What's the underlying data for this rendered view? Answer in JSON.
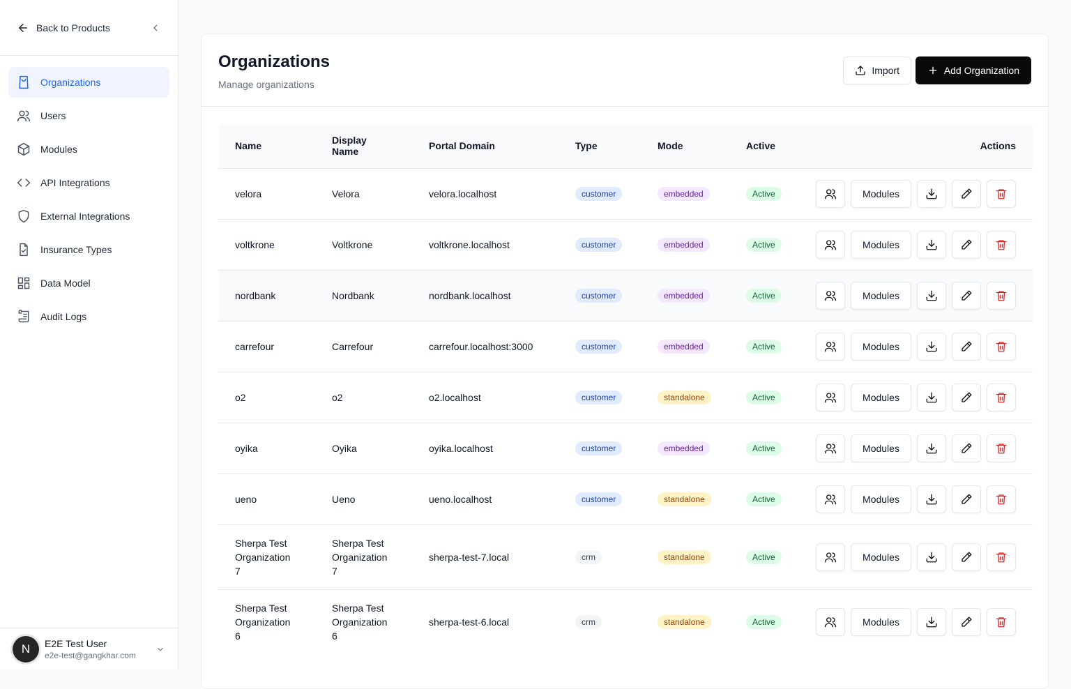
{
  "sidebar": {
    "back": "Back to Products",
    "nav": [
      "Organizations",
      "Users",
      "Modules",
      "API Integrations",
      "External Integrations",
      "Insurance Types",
      "Data Model",
      "Audit Logs"
    ],
    "user": {
      "avatar": "N",
      "name": "E2E Test User",
      "email": "e2e-test@gangkhar.com"
    }
  },
  "header": {
    "title": "Organizations",
    "subtitle": "Manage organizations",
    "import": "Import",
    "add": "Add Organization"
  },
  "table": {
    "columns": [
      "Name",
      "Display Name",
      "Portal Domain",
      "Type",
      "Mode",
      "Active",
      "Actions"
    ],
    "modules_button": "Modules",
    "rows": [
      [
        "velora",
        "Velora",
        "velora.localhost",
        "customer",
        "embedded",
        "Active"
      ],
      [
        "voltkrone",
        "Voltkrone",
        "voltkrone.localhost",
        "customer",
        "embedded",
        "Active"
      ],
      [
        "nordbank",
        "Nordbank",
        "nordbank.localhost",
        "customer",
        "embedded",
        "Active"
      ],
      [
        "carrefour",
        "Carrefour",
        "carrefour.localhost:3000",
        "customer",
        "embedded",
        "Active"
      ],
      [
        "o2",
        "o2",
        "o2.localhost",
        "customer",
        "standalone",
        "Active"
      ],
      [
        "oyika",
        "Oyika",
        "oyika.localhost",
        "customer",
        "embedded",
        "Active"
      ],
      [
        "ueno",
        "Ueno",
        "ueno.localhost",
        "customer",
        "standalone",
        "Active"
      ],
      [
        "Sherpa Test Organization 7",
        "Sherpa Test Organization 7",
        "sherpa-test-7.local",
        "crm",
        "standalone",
        "Active"
      ],
      [
        "Sherpa Test Organization 6",
        "Sherpa Test Organization 6",
        "sherpa-test-6.local",
        "crm",
        "standalone",
        "Active"
      ]
    ]
  }
}
